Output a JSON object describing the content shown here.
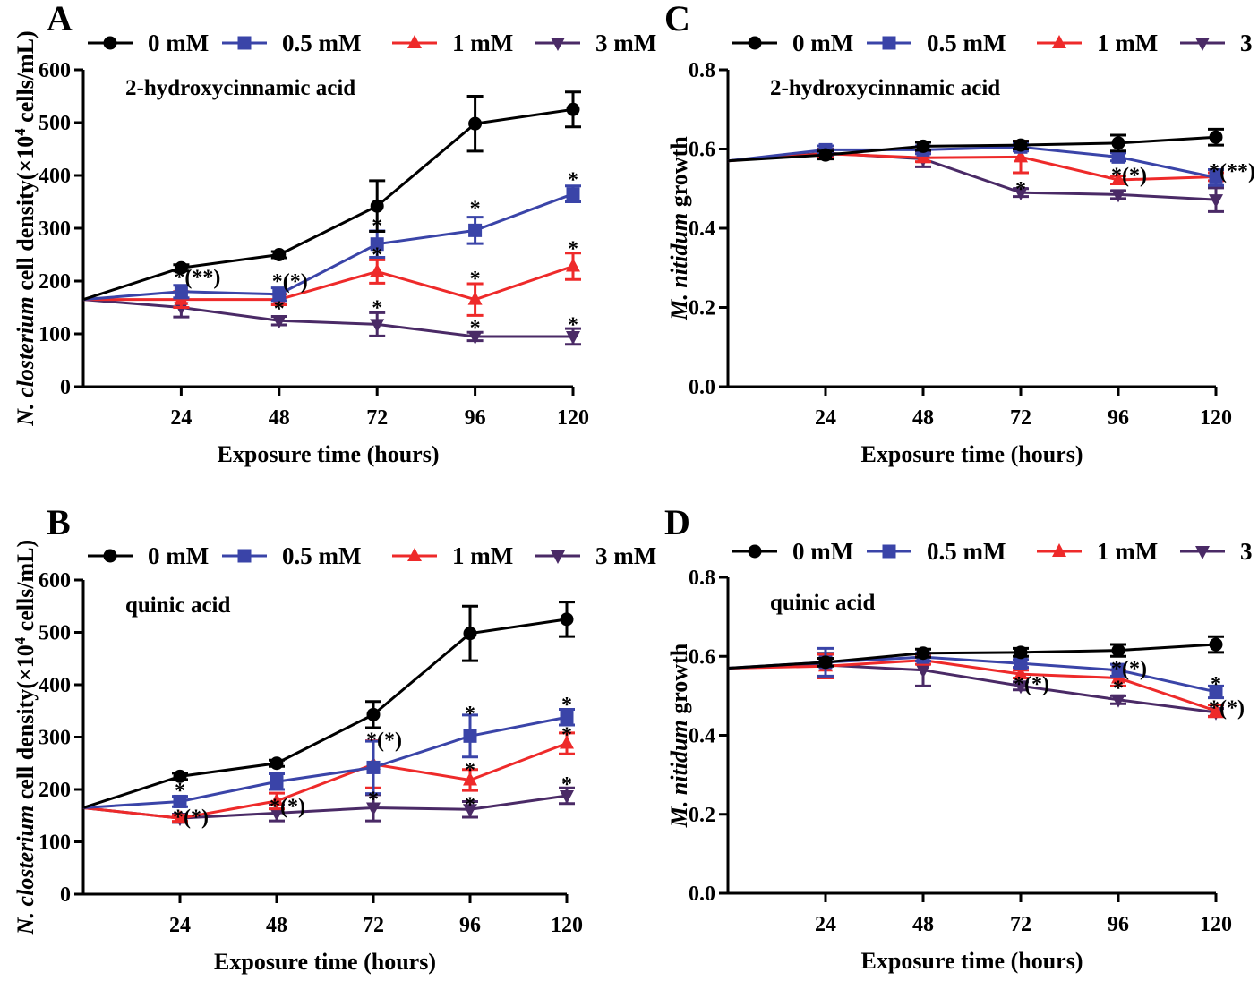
{
  "colors": {
    "s0": "#000000",
    "s05": "#3a44a8",
    "s1": "#ee2a2a",
    "s3": "#4a2a66"
  },
  "legend": [
    "0 mM",
    "0.5 mM",
    "1 mM",
    "3 mM"
  ],
  "chart_data": [
    {
      "type": "line",
      "panel": "A",
      "annotation": "2-hydroxycinnamic acid",
      "xlabel": "Exposure time (hours)",
      "ylabel_parts": [
        "N. closterium",
        " cell density(×10",
        "4",
        " cells/mL)"
      ],
      "xlim": [
        0,
        120
      ],
      "ylim": [
        0,
        600
      ],
      "x_ticks": [
        24,
        48,
        72,
        96,
        120
      ],
      "y_ticks": [
        0,
        100,
        200,
        300,
        400,
        500,
        600
      ],
      "y_tick_labels": [
        "0",
        "100",
        "200",
        "300",
        "400",
        "500",
        "600"
      ],
      "x": [
        0,
        24,
        48,
        72,
        96,
        120
      ],
      "series": [
        {
          "name": "0 mM",
          "marker": "circle",
          "values": [
            165,
            225,
            250,
            342,
            498,
            525
          ],
          "errors": [
            0,
            6,
            6,
            48,
            52,
            33
          ]
        },
        {
          "name": "0.5 mM",
          "marker": "square",
          "values": [
            165,
            180,
            175,
            270,
            296,
            365
          ],
          "errors": [
            0,
            12,
            12,
            25,
            25,
            15
          ]
        },
        {
          "name": "1 mM",
          "marker": "triangle",
          "values": [
            165,
            165,
            165,
            218,
            165,
            228
          ],
          "errors": [
            0,
            15,
            10,
            22,
            30,
            25
          ]
        },
        {
          "name": "3 mM",
          "marker": "tri-down",
          "values": [
            165,
            150,
            125,
            118,
            95,
            95
          ],
          "errors": [
            0,
            18,
            8,
            22,
            8,
            15
          ]
        }
      ],
      "stars": [
        {
          "x": 24,
          "y": 208,
          "label": "*(**)"
        },
        {
          "x": 48,
          "y": 200,
          "label": "*(*)"
        },
        {
          "x": 48,
          "y": 148,
          "label": "*"
        },
        {
          "x": 72,
          "y": 305,
          "label": "*"
        },
        {
          "x": 72,
          "y": 250,
          "label": "*"
        },
        {
          "x": 72,
          "y": 150,
          "label": "*"
        },
        {
          "x": 96,
          "y": 338,
          "label": "*"
        },
        {
          "x": 96,
          "y": 205,
          "label": "*"
        },
        {
          "x": 96,
          "y": 112,
          "label": "*"
        },
        {
          "x": 120,
          "y": 392,
          "label": "*"
        },
        {
          "x": 120,
          "y": 262,
          "label": "*"
        },
        {
          "x": 120,
          "y": 118,
          "label": "*"
        }
      ]
    },
    {
      "type": "line",
      "panel": "B",
      "annotation": "quinic acid",
      "xlabel": "Exposure time (hours)",
      "ylabel_parts": [
        "N. closterium",
        " cell density(×10",
        "4",
        " cells/mL)"
      ],
      "xlim": [
        0,
        120
      ],
      "ylim": [
        0,
        600
      ],
      "x_ticks": [
        24,
        48,
        72,
        96,
        120
      ],
      "y_ticks": [
        0,
        100,
        200,
        300,
        400,
        500,
        600
      ],
      "y_tick_labels": [
        "0",
        "100",
        "200",
        "300",
        "400",
        "500",
        "600"
      ],
      "x": [
        0,
        24,
        48,
        72,
        96,
        120
      ],
      "series": [
        {
          "name": "0 mM",
          "marker": "circle",
          "values": [
            165,
            225,
            250,
            343,
            498,
            525
          ],
          "errors": [
            0,
            6,
            6,
            25,
            52,
            33
          ]
        },
        {
          "name": "0.5 mM",
          "marker": "square",
          "values": [
            165,
            177,
            215,
            242,
            302,
            338
          ],
          "errors": [
            0,
            10,
            15,
            50,
            40,
            15
          ]
        },
        {
          "name": "1 mM",
          "marker": "triangle",
          "values": [
            165,
            145,
            178,
            248,
            218,
            288
          ],
          "errors": [
            0,
            6,
            15,
            45,
            20,
            20
          ]
        },
        {
          "name": "3 mM",
          "marker": "tri-down",
          "values": [
            165,
            145,
            155,
            165,
            162,
            188
          ],
          "errors": [
            0,
            8,
            15,
            25,
            15,
            15
          ]
        }
      ],
      "stars": [
        {
          "x": 24,
          "y": 198,
          "label": "*"
        },
        {
          "x": 24,
          "y": 148,
          "label": "*(*)"
        },
        {
          "x": 48,
          "y": 168,
          "label": "*(*)"
        },
        {
          "x": 72,
          "y": 295,
          "label": "*(*)"
        },
        {
          "x": 72,
          "y": 182,
          "label": "*"
        },
        {
          "x": 96,
          "y": 345,
          "label": "*"
        },
        {
          "x": 96,
          "y": 238,
          "label": "*"
        },
        {
          "x": 96,
          "y": 172,
          "label": "*"
        },
        {
          "x": 120,
          "y": 362,
          "label": "*"
        },
        {
          "x": 120,
          "y": 305,
          "label": "*"
        },
        {
          "x": 120,
          "y": 210,
          "label": "*"
        }
      ]
    },
    {
      "type": "line",
      "panel": "C",
      "annotation": "2-hydroxycinnamic acid",
      "xlabel": "Exposure time (hours)",
      "ylabel_parts": [
        "M. nitidum",
        " growth"
      ],
      "xlim": [
        0,
        120
      ],
      "ylim": [
        0,
        0.8
      ],
      "x_ticks": [
        24,
        48,
        72,
        96,
        120
      ],
      "y_ticks": [
        0,
        0.2,
        0.4,
        0.6,
        0.8
      ],
      "y_tick_labels": [
        "0.0",
        "0.2",
        "0.4",
        "0.6",
        "0.8"
      ],
      "x": [
        0,
        24,
        48,
        72,
        96,
        120
      ],
      "series": [
        {
          "name": "0 mM",
          "marker": "circle",
          "values": [
            0.57,
            0.585,
            0.607,
            0.61,
            0.615,
            0.63
          ],
          "errors": [
            0,
            0.01,
            0.01,
            0.01,
            0.02,
            0.02
          ]
        },
        {
          "name": "0.5 mM",
          "marker": "square",
          "values": [
            0.57,
            0.598,
            0.598,
            0.605,
            0.58,
            0.528
          ],
          "errors": [
            0,
            0.01,
            0.01,
            0.01,
            0.01,
            0.02
          ]
        },
        {
          "name": "1 mM",
          "marker": "triangle",
          "values": [
            0.57,
            0.588,
            0.578,
            0.58,
            0.522,
            0.53
          ],
          "errors": [
            0,
            0.01,
            0.01,
            0.04,
            0.01,
            0.01
          ]
        },
        {
          "name": "3 mM",
          "marker": "tri-down",
          "values": [
            0.57,
            0.59,
            0.575,
            0.49,
            0.485,
            0.472
          ],
          "errors": [
            0,
            0.01,
            0.02,
            0.01,
            0.01,
            0.03
          ]
        }
      ],
      "stars": [
        {
          "x": 72,
          "y": 0.5,
          "label": "*"
        },
        {
          "x": 96,
          "y": 0.535,
          "label": "*(*)"
        },
        {
          "x": 120,
          "y": 0.545,
          "label": "*(**)"
        }
      ]
    },
    {
      "type": "line",
      "panel": "D",
      "annotation": "quinic acid",
      "xlabel": "Exposure time (hours)",
      "ylabel_parts": [
        "M. nitidum",
        " growth"
      ],
      "xlim": [
        0,
        120
      ],
      "ylim": [
        0,
        0.8
      ],
      "x_ticks": [
        24,
        48,
        72,
        96,
        120
      ],
      "y_ticks": [
        0,
        0.2,
        0.4,
        0.6,
        0.8
      ],
      "y_tick_labels": [
        "0.0",
        "0.2",
        "0.4",
        "0.6",
        "0.8"
      ],
      "x": [
        0,
        24,
        48,
        72,
        96,
        120
      ],
      "series": [
        {
          "name": "0 mM",
          "marker": "circle",
          "values": [
            0.57,
            0.585,
            0.608,
            0.61,
            0.615,
            0.63
          ],
          "errors": [
            0,
            0.01,
            0.01,
            0.01,
            0.015,
            0.02
          ]
        },
        {
          "name": "0.5 mM",
          "marker": "square",
          "values": [
            0.57,
            0.585,
            0.598,
            0.582,
            0.565,
            0.51
          ],
          "errors": [
            0,
            0.035,
            0.01,
            0.01,
            0.015,
            0.015
          ]
        },
        {
          "name": "1 mM",
          "marker": "triangle",
          "values": [
            0.57,
            0.575,
            0.59,
            0.555,
            0.545,
            0.462
          ],
          "errors": [
            0,
            0.03,
            0.01,
            0.01,
            0.02,
            0.015
          ]
        },
        {
          "name": "3 mM",
          "marker": "tri-down",
          "values": [
            0.57,
            0.578,
            0.565,
            0.525,
            0.49,
            0.458
          ],
          "errors": [
            0,
            0.03,
            0.04,
            0.01,
            0.01,
            0.01
          ]
        }
      ],
      "stars": [
        {
          "x": 72,
          "y": 0.53,
          "label": "*(*)"
        },
        {
          "x": 96,
          "y": 0.57,
          "label": "*(*)"
        },
        {
          "x": 96,
          "y": 0.52,
          "label": "*"
        },
        {
          "x": 120,
          "y": 0.53,
          "label": "*"
        },
        {
          "x": 120,
          "y": 0.47,
          "label": "*(*)"
        }
      ]
    }
  ]
}
